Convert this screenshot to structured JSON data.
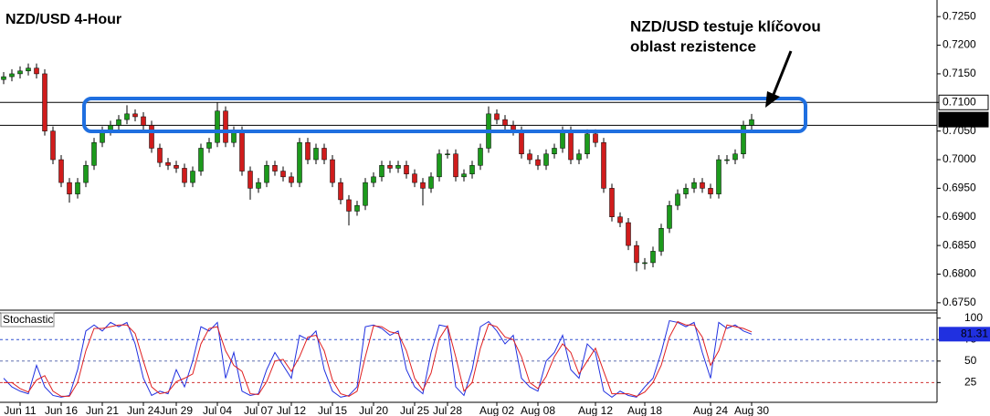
{
  "chart_data": [
    {
      "type": "candlestick",
      "title": "NZD/USD 4-Hour",
      "annotation": [
        "NZD/USD testuje klíčovou",
        "oblast rezistence"
      ],
      "categories": [
        null,
        null,
        "Jun 11",
        null,
        null,
        null,
        null,
        "Jun 16",
        null,
        null,
        null,
        null,
        "Jun 21",
        null,
        null,
        null,
        null,
        "Jun 24",
        null,
        null,
        null,
        "Jun 29",
        null,
        null,
        null,
        null,
        "Jul 04",
        null,
        null,
        null,
        null,
        "Jul 07",
        null,
        null,
        null,
        "Jul 12",
        null,
        null,
        null,
        null,
        "Jul 15",
        null,
        null,
        null,
        null,
        "Jul 20",
        null,
        null,
        null,
        null,
        "Jul 25",
        null,
        null,
        null,
        "Jul 28",
        null,
        null,
        null,
        null,
        null,
        "Aug 02",
        null,
        null,
        null,
        null,
        "Aug 08",
        null,
        null,
        null,
        null,
        null,
        null,
        "Aug 12",
        null,
        null,
        null,
        null,
        null,
        "Aug 18",
        null,
        null,
        null,
        null,
        null,
        null,
        null,
        "Aug 24",
        null,
        null,
        null,
        null,
        "Aug 30"
      ],
      "open": [
        0.714,
        0.7145,
        0.715,
        0.7155,
        0.716,
        0.715,
        0.705,
        0.7,
        0.696,
        0.694,
        0.696,
        0.699,
        0.703,
        0.705,
        0.706,
        0.707,
        0.708,
        0.7075,
        0.706,
        0.702,
        0.6995,
        0.699,
        0.6985,
        0.696,
        0.698,
        0.702,
        0.703,
        0.7085,
        0.703,
        0.705,
        0.698,
        0.695,
        0.696,
        0.699,
        0.698,
        0.697,
        0.696,
        0.703,
        0.7,
        0.702,
        0.7,
        0.696,
        0.693,
        0.691,
        0.692,
        0.696,
        0.697,
        0.699,
        0.6985,
        0.699,
        0.6975,
        0.696,
        0.695,
        0.697,
        0.701,
        0.701,
        0.697,
        0.6975,
        0.699,
        0.702,
        0.708,
        0.707,
        0.706,
        0.705,
        0.701,
        0.7,
        0.699,
        0.701,
        0.702,
        0.705,
        0.7,
        0.701,
        0.7045,
        0.703,
        0.695,
        0.69,
        0.689,
        0.685,
        0.682,
        0.682,
        0.684,
        0.688,
        0.692,
        0.694,
        0.695,
        0.696,
        0.695,
        0.694,
        0.7,
        0.7,
        0.701,
        0.706
      ],
      "high": [
        0.7153,
        0.7158,
        0.7163,
        0.7168,
        0.7168,
        0.7158,
        0.7058,
        0.7008,
        0.6968,
        0.6968,
        0.6998,
        0.7038,
        0.7058,
        0.7068,
        0.7078,
        0.7095,
        0.7088,
        0.7083,
        0.7068,
        0.7028,
        0.7003,
        0.6998,
        0.6993,
        0.6988,
        0.7028,
        0.7038,
        0.71,
        0.7093,
        0.7058,
        0.7058,
        0.6988,
        0.6968,
        0.6998,
        0.6998,
        0.6988,
        0.6978,
        0.7038,
        0.7038,
        0.7028,
        0.7028,
        0.7008,
        0.6968,
        0.6938,
        0.6928,
        0.6968,
        0.6978,
        0.6998,
        0.6998,
        0.6998,
        0.6998,
        0.6983,
        0.6968,
        0.6978,
        0.7018,
        0.7018,
        0.7018,
        0.6983,
        0.6998,
        0.7028,
        0.7093,
        0.7088,
        0.7078,
        0.7068,
        0.7058,
        0.7018,
        0.7008,
        0.7018,
        0.7028,
        0.7058,
        0.7058,
        0.7018,
        0.7053,
        0.7053,
        0.7038,
        0.6958,
        0.6908,
        0.6898,
        0.6858,
        0.6828,
        0.6848,
        0.6888,
        0.6928,
        0.6948,
        0.6958,
        0.6968,
        0.6968,
        0.6958,
        0.7008,
        0.7008,
        0.7018,
        0.7068,
        0.708
      ],
      "low": [
        0.7132,
        0.7137,
        0.7142,
        0.7147,
        0.7142,
        0.7042,
        0.6992,
        0.6952,
        0.6925,
        0.6932,
        0.6952,
        0.6982,
        0.7022,
        0.7042,
        0.7052,
        0.7062,
        0.7067,
        0.7052,
        0.7012,
        0.6987,
        0.6982,
        0.6977,
        0.6952,
        0.6952,
        0.6972,
        0.7012,
        0.7022,
        0.7022,
        0.7022,
        0.6972,
        0.693,
        0.6942,
        0.6952,
        0.6972,
        0.6962,
        0.6952,
        0.6952,
        0.6992,
        0.6992,
        0.6992,
        0.6952,
        0.6922,
        0.6885,
        0.6902,
        0.6912,
        0.6952,
        0.6962,
        0.6977,
        0.6977,
        0.6967,
        0.6952,
        0.692,
        0.6942,
        0.6962,
        0.7002,
        0.6962,
        0.6962,
        0.6967,
        0.6982,
        0.7012,
        0.7062,
        0.7052,
        0.7042,
        0.7002,
        0.6992,
        0.6982,
        0.6982,
        0.7002,
        0.7012,
        0.6992,
        0.6992,
        0.7002,
        0.7022,
        0.6942,
        0.6892,
        0.6882,
        0.6842,
        0.6805,
        0.6808,
        0.6812,
        0.6832,
        0.6872,
        0.6912,
        0.6932,
        0.6942,
        0.6942,
        0.6932,
        0.6932,
        0.6992,
        0.6992,
        0.7002,
        0.7052
      ],
      "close": [
        0.7145,
        0.715,
        0.7155,
        0.716,
        0.715,
        0.705,
        0.7,
        0.696,
        0.694,
        0.696,
        0.699,
        0.703,
        0.705,
        0.706,
        0.707,
        0.708,
        0.7075,
        0.706,
        0.702,
        0.6995,
        0.699,
        0.6985,
        0.696,
        0.698,
        0.702,
        0.703,
        0.7085,
        0.703,
        0.705,
        0.698,
        0.695,
        0.696,
        0.699,
        0.698,
        0.697,
        0.696,
        0.703,
        0.7,
        0.702,
        0.7,
        0.696,
        0.693,
        0.691,
        0.692,
        0.696,
        0.697,
        0.699,
        0.6985,
        0.699,
        0.6975,
        0.696,
        0.695,
        0.697,
        0.701,
        0.701,
        0.697,
        0.6975,
        0.699,
        0.702,
        0.708,
        0.707,
        0.706,
        0.705,
        0.701,
        0.7,
        0.699,
        0.701,
        0.702,
        0.705,
        0.7,
        0.701,
        0.7045,
        0.703,
        0.695,
        0.69,
        0.689,
        0.685,
        0.682,
        0.682,
        0.684,
        0.688,
        0.692,
        0.694,
        0.695,
        0.696,
        0.695,
        0.694,
        0.7,
        0.7,
        0.701,
        0.706,
        0.707
      ],
      "up_color": "#1c9a1c",
      "down_color": "#d01c1c",
      "ylim": [
        0.6737,
        0.7279
      ],
      "yticks": [
        {
          "value": 0.725,
          "label": "0.7250"
        },
        {
          "value": 0.72,
          "label": "0.7200"
        },
        {
          "value": 0.715,
          "label": "0.7150"
        },
        {
          "value": 0.71,
          "label": "0.7100"
        },
        {
          "value": 0.705,
          "label": "0.7050"
        },
        {
          "value": 0.7,
          "label": "0.7000"
        },
        {
          "value": 0.695,
          "label": "0.6950"
        },
        {
          "value": 0.69,
          "label": "0.6900"
        },
        {
          "value": 0.685,
          "label": "0.6850"
        },
        {
          "value": 0.68,
          "label": "0.6800"
        },
        {
          "value": 0.675,
          "label": "0.6750"
        }
      ],
      "hlines": [
        0.71,
        0.706
      ],
      "price_labels": [
        {
          "value": 0.71,
          "label": "0.7100"
        },
        {
          "value": 0.707,
          "label": "0.7070"
        }
      ],
      "grid": false
    },
    {
      "type": "line",
      "title": "Stochastic",
      "series": [
        {
          "color": "#2030e0",
          "values": [
            30,
            20,
            15,
            12,
            45,
            20,
            10,
            8,
            10,
            40,
            85,
            92,
            85,
            95,
            90,
            95,
            70,
            30,
            10,
            15,
            12,
            40,
            20,
            50,
            90,
            85,
            95,
            30,
            60,
            15,
            10,
            12,
            40,
            60,
            45,
            30,
            80,
            75,
            85,
            40,
            15,
            8,
            10,
            20,
            90,
            92,
            88,
            80,
            85,
            40,
            20,
            12,
            60,
            92,
            90,
            20,
            10,
            40,
            90,
            96,
            85,
            70,
            80,
            30,
            20,
            15,
            50,
            60,
            80,
            40,
            30,
            70,
            60,
            15,
            8,
            15,
            10,
            8,
            20,
            30,
            60,
            97,
            95,
            90,
            95,
            60,
            30,
            95,
            88,
            92,
            85,
            81.31
          ]
        },
        {
          "color": "#e02020",
          "values": [
            25,
            25,
            18,
            14,
            28,
            33,
            15,
            9,
            9,
            25,
            62,
            88,
            88,
            90,
            92,
            92,
            82,
            50,
            20,
            12,
            14,
            26,
            30,
            35,
            70,
            88,
            90,
            62,
            45,
            38,
            12,
            11,
            26,
            50,
            52,
            38,
            55,
            78,
            80,
            62,
            28,
            12,
            9,
            15,
            55,
            91,
            90,
            84,
            82,
            62,
            30,
            16,
            36,
            76,
            91,
            55,
            15,
            25,
            65,
            93,
            90,
            78,
            75,
            55,
            25,
            18,
            32,
            55,
            70,
            60,
            35,
            50,
            65,
            38,
            12,
            12,
            12,
            9,
            14,
            25,
            45,
            78,
            96,
            92,
            92,
            78,
            45,
            62,
            92,
            90,
            88,
            84
          ]
        }
      ],
      "ylim": [
        2,
        105
      ],
      "yticks": [
        100,
        75,
        50,
        25
      ],
      "levels": [
        75,
        50,
        25
      ],
      "level_colors": [
        "#3050d0",
        "#6070b0",
        "#d03030"
      ]
    }
  ]
}
